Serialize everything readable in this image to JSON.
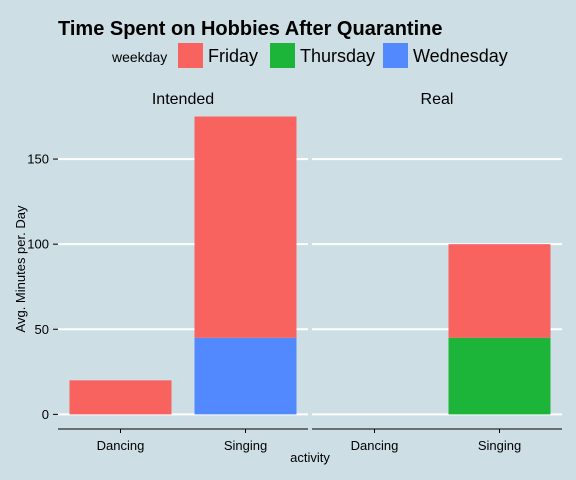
{
  "chart_data": {
    "type": "bar",
    "stacked": true,
    "title": "Time Spent on Hobbies After Quarantine",
    "xlabel": "activity",
    "ylabel": "Avg. Minutes per. Day",
    "ylim": [
      0,
      175
    ],
    "yticks": [
      0,
      50,
      100,
      150
    ],
    "categories": [
      "Dancing",
      "Singing"
    ],
    "legend": {
      "title": "weekday",
      "position": "top",
      "entries": [
        {
          "name": "Friday",
          "color": "#f8625f"
        },
        {
          "name": "Thursday",
          "color": "#1db539"
        },
        {
          "name": "Wednesday",
          "color": "#5389fe"
        }
      ]
    },
    "grid": true,
    "facets": [
      {
        "label": "Intended",
        "bars": [
          {
            "category": "Dancing",
            "segments": [
              {
                "weekday": "Friday",
                "value": 20
              }
            ]
          },
          {
            "category": "Singing",
            "segments": [
              {
                "weekday": "Wednesday",
                "value": 45
              },
              {
                "weekday": "Friday",
                "value": 130
              }
            ]
          }
        ]
      },
      {
        "label": "Real",
        "bars": [
          {
            "category": "Dancing",
            "segments": []
          },
          {
            "category": "Singing",
            "segments": [
              {
                "weekday": "Thursday",
                "value": 45
              },
              {
                "weekday": "Friday",
                "value": 55
              }
            ]
          }
        ]
      }
    ]
  }
}
